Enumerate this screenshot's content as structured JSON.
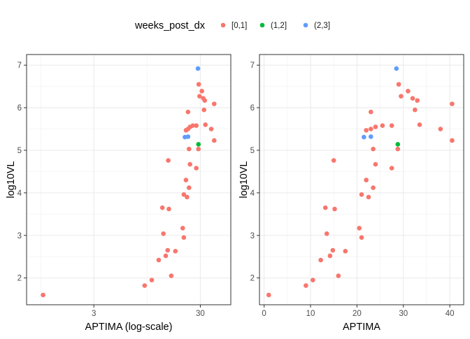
{
  "legend": {
    "title": "weeks_post_dx",
    "placement": "top",
    "entries": [
      {
        "label": "[0,1]",
        "color": "#F8766D"
      },
      {
        "label": "(1,2]",
        "color": "#00BA38"
      },
      {
        "label": "(2,3]",
        "color": "#619CFF"
      }
    ]
  },
  "chart_data": [
    {
      "type": "scatter",
      "panel": "left",
      "xlabel": "APTIMA (log-scale)",
      "ylabel": "log10VL",
      "x_scale": "log10",
      "xlim": [
        0.7,
        58
      ],
      "ylim": [
        1.37,
        7.25
      ],
      "x_ticks": [
        3,
        30
      ],
      "x_tick_labels": [
        "3",
        "30"
      ],
      "y_ticks": [
        2,
        3,
        4,
        5,
        6,
        7
      ],
      "y_tick_labels": [
        "2",
        "3",
        "4",
        "5",
        "6",
        "7"
      ],
      "grid": true,
      "series": [
        {
          "group": "[0,1]",
          "color": "#F8766D",
          "points": [
            [
              1.0,
              1.6
            ],
            [
              9.0,
              1.82
            ],
            [
              10.5,
              1.95
            ],
            [
              12.2,
              2.42
            ],
            [
              13.5,
              3.04
            ],
            [
              13.2,
              3.65
            ],
            [
              14.2,
              2.52
            ],
            [
              14.8,
              2.65
            ],
            [
              15.2,
              3.62
            ],
            [
              15.0,
              4.76
            ],
            [
              16.0,
              2.05
            ],
            [
              17.5,
              2.63
            ],
            [
              20.5,
              3.17
            ],
            [
              21.0,
              2.95
            ],
            [
              21.0,
              3.96
            ],
            [
              22.0,
              4.3
            ],
            [
              22.5,
              3.9
            ],
            [
              22.0,
              5.47
            ],
            [
              23.5,
              4.12
            ],
            [
              23.5,
              5.03
            ],
            [
              23.0,
              5.5
            ],
            [
              23.0,
              5.9
            ],
            [
              24.0,
              4.67
            ],
            [
              24.0,
              5.55
            ],
            [
              25.5,
              5.58
            ],
            [
              27.5,
              4.58
            ],
            [
              27.5,
              5.58
            ],
            [
              28.8,
              5.03
            ],
            [
              29.0,
              6.55
            ],
            [
              29.5,
              6.27
            ],
            [
              31.0,
              6.39
            ],
            [
              32.0,
              6.22
            ],
            [
              32.5,
              5.95
            ],
            [
              33.0,
              6.17
            ],
            [
              33.5,
              5.6
            ],
            [
              38.0,
              5.5
            ],
            [
              40.5,
              6.09
            ],
            [
              40.5,
              5.23
            ]
          ]
        },
        {
          "group": "(1,2]",
          "color": "#00BA38",
          "points": [
            [
              28.8,
              5.14
            ]
          ]
        },
        {
          "group": "(2,3]",
          "color": "#619CFF",
          "points": [
            [
              21.5,
              5.31
            ],
            [
              23.0,
              5.32
            ],
            [
              28.5,
              6.92
            ]
          ]
        }
      ]
    },
    {
      "type": "scatter",
      "panel": "right",
      "xlabel": "APTIMA",
      "ylabel": "log10VL",
      "x_scale": "linear",
      "xlim": [
        -1.0,
        43.0
      ],
      "ylim": [
        1.37,
        7.25
      ],
      "x_ticks": [
        0,
        10,
        20,
        30,
        40
      ],
      "x_tick_labels": [
        "0",
        "10",
        "20",
        "30",
        "40"
      ],
      "y_ticks": [
        2,
        3,
        4,
        5,
        6,
        7
      ],
      "y_tick_labels": [
        "2",
        "3",
        "4",
        "5",
        "6",
        "7"
      ],
      "grid": true,
      "series": [
        {
          "group": "[0,1]",
          "color": "#F8766D",
          "points": [
            [
              1.0,
              1.6
            ],
            [
              9.0,
              1.82
            ],
            [
              10.5,
              1.95
            ],
            [
              12.2,
              2.42
            ],
            [
              13.5,
              3.04
            ],
            [
              13.2,
              3.65
            ],
            [
              14.2,
              2.52
            ],
            [
              14.8,
              2.65
            ],
            [
              15.2,
              3.62
            ],
            [
              15.0,
              4.76
            ],
            [
              16.0,
              2.05
            ],
            [
              17.5,
              2.63
            ],
            [
              20.5,
              3.17
            ],
            [
              21.0,
              2.95
            ],
            [
              21.0,
              3.96
            ],
            [
              22.0,
              4.3
            ],
            [
              22.5,
              3.9
            ],
            [
              22.0,
              5.47
            ],
            [
              23.5,
              4.12
            ],
            [
              23.5,
              5.03
            ],
            [
              23.0,
              5.5
            ],
            [
              23.0,
              5.9
            ],
            [
              24.0,
              4.67
            ],
            [
              24.0,
              5.55
            ],
            [
              25.5,
              5.58
            ],
            [
              27.5,
              4.58
            ],
            [
              27.5,
              5.58
            ],
            [
              28.8,
              5.03
            ],
            [
              29.0,
              6.55
            ],
            [
              29.5,
              6.27
            ],
            [
              31.0,
              6.39
            ],
            [
              32.0,
              6.22
            ],
            [
              32.5,
              5.95
            ],
            [
              33.0,
              6.17
            ],
            [
              33.5,
              5.6
            ],
            [
              38.0,
              5.5
            ],
            [
              40.5,
              6.09
            ],
            [
              40.5,
              5.23
            ]
          ]
        },
        {
          "group": "(1,2]",
          "color": "#00BA38",
          "points": [
            [
              28.8,
              5.14
            ]
          ]
        },
        {
          "group": "(2,3]",
          "color": "#619CFF",
          "points": [
            [
              21.5,
              5.31
            ],
            [
              23.0,
              5.32
            ],
            [
              28.5,
              6.92
            ]
          ]
        }
      ]
    }
  ]
}
